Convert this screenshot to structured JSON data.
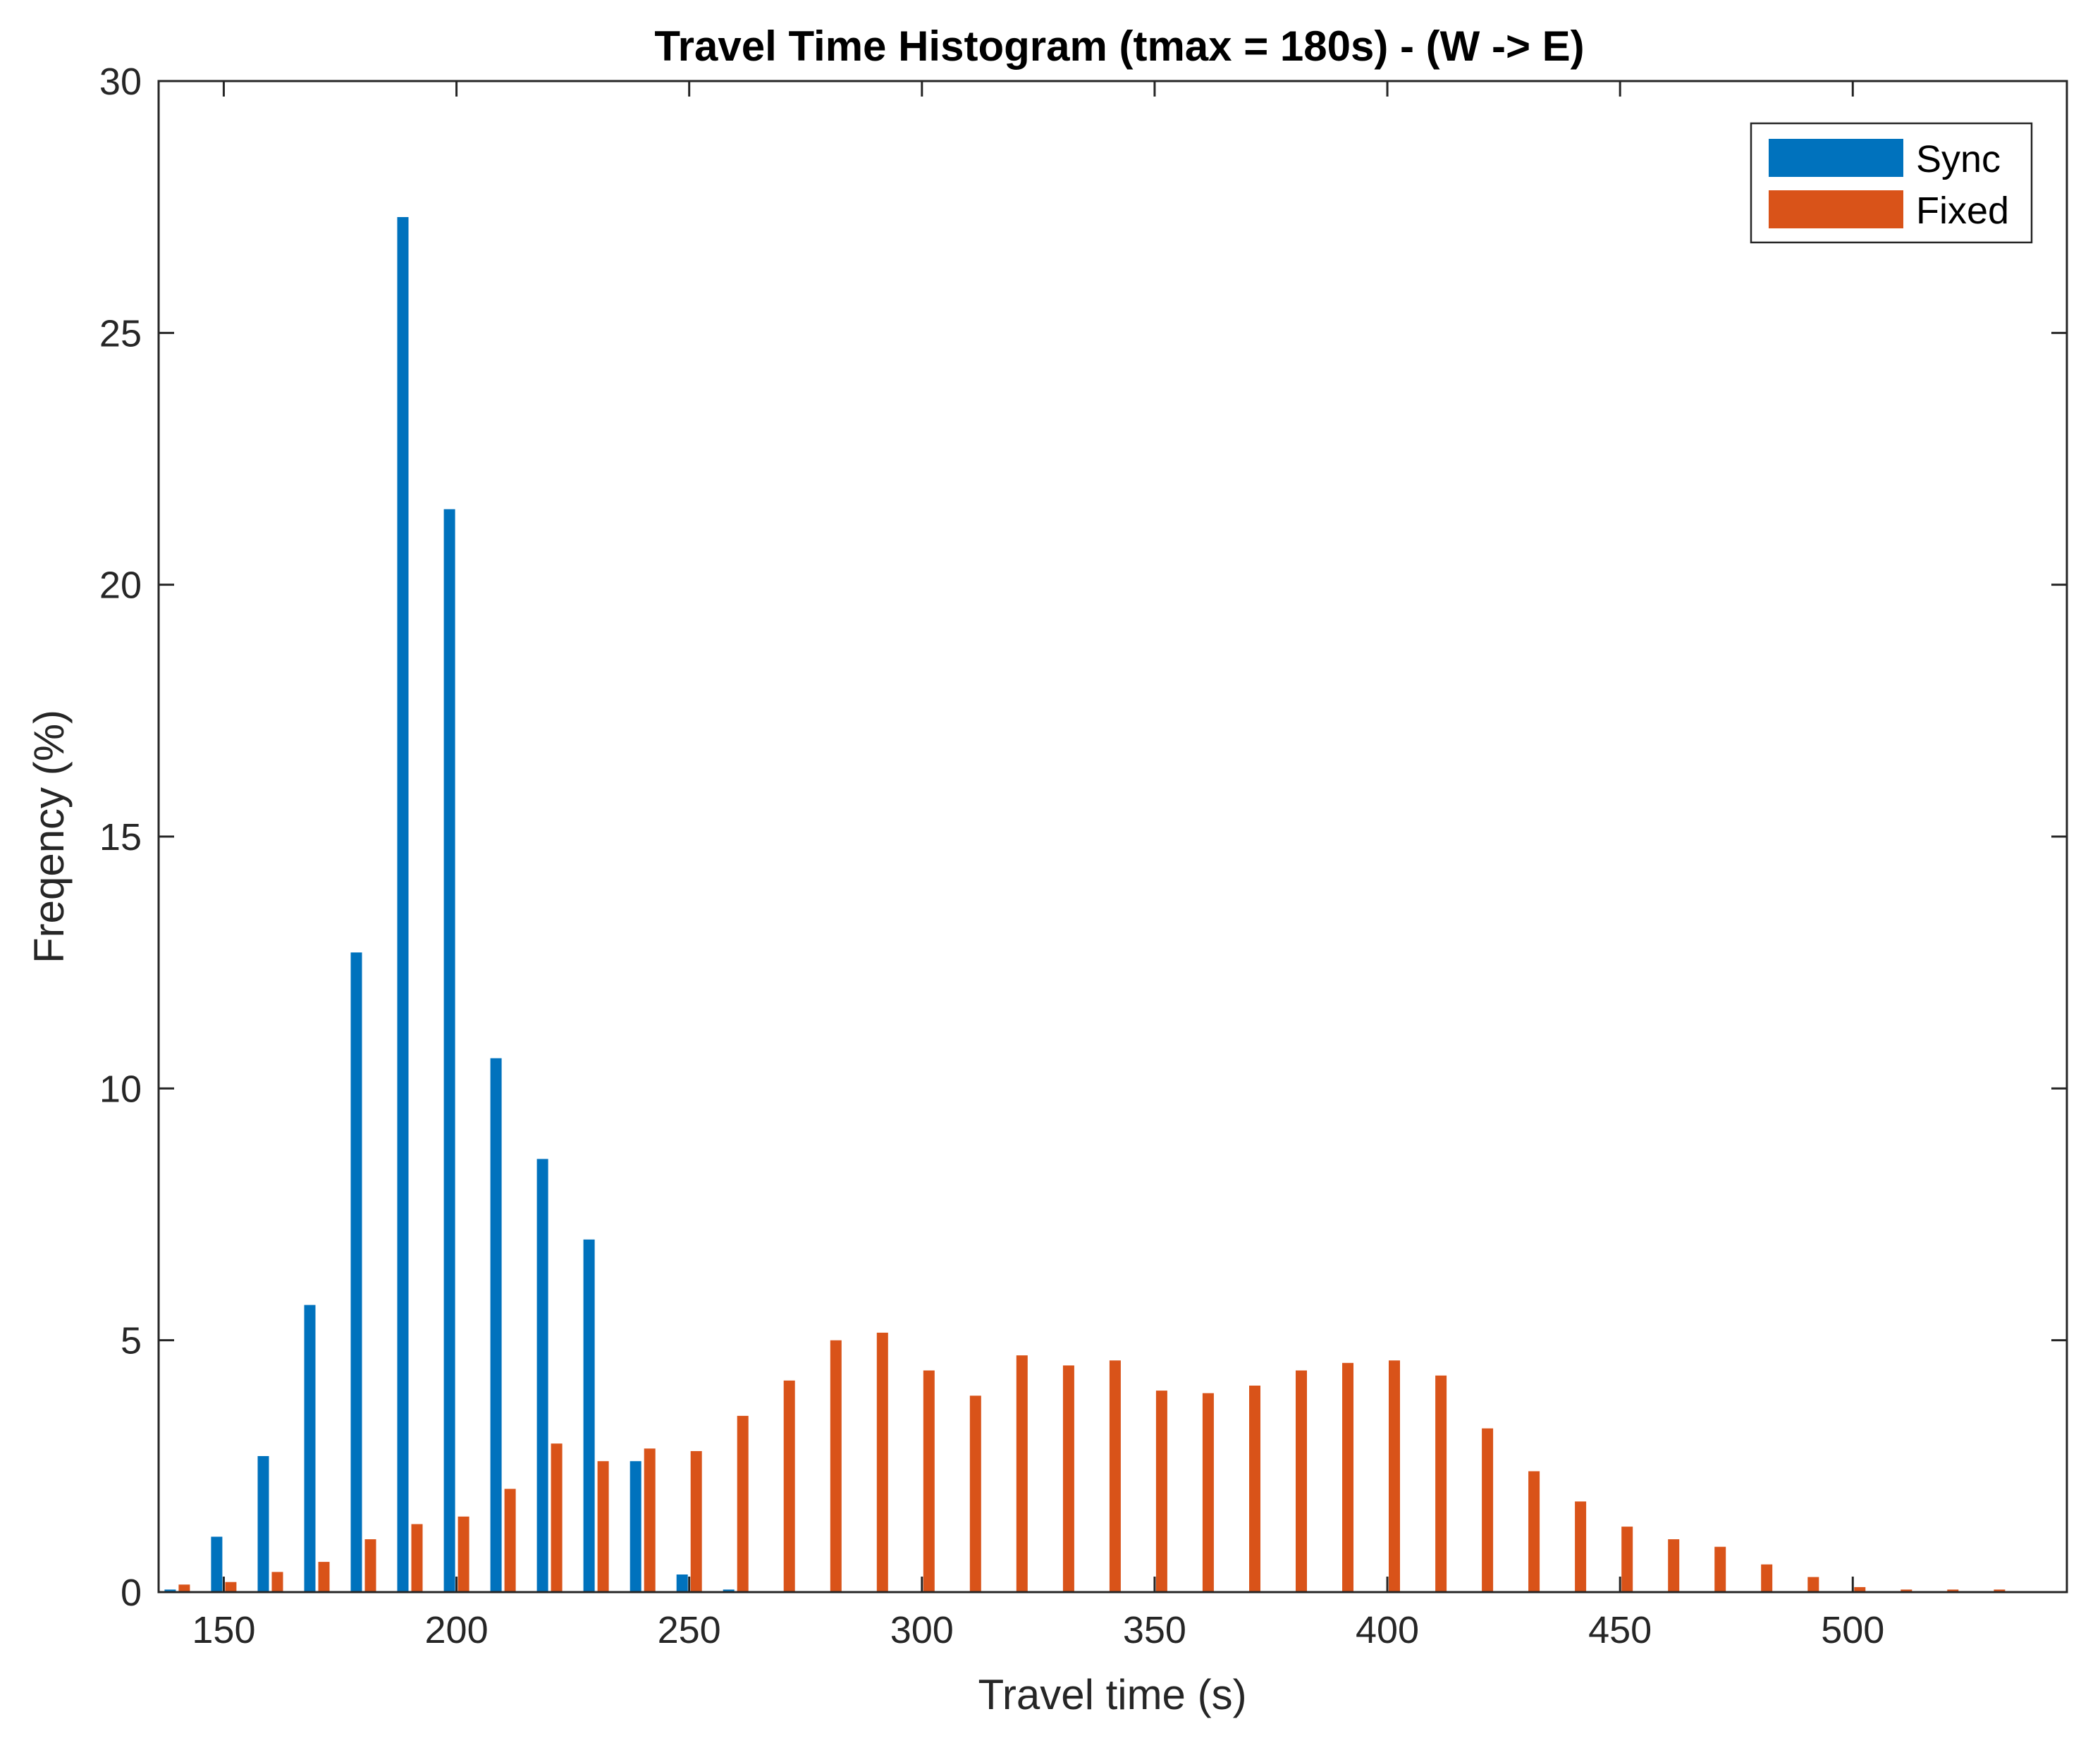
{
  "chart_data": {
    "type": "bar",
    "title": "Travel Time Histogram (tmax = 180s) - (W -> E)",
    "xlabel": "Travel time (s)",
    "ylabel": "Freqency (%)",
    "xlim": [
      136,
      546
    ],
    "ylim": [
      0,
      30
    ],
    "xticks": [
      150,
      200,
      250,
      300,
      350,
      400,
      450,
      500
    ],
    "yticks": [
      0,
      5,
      10,
      15,
      20,
      25,
      30
    ],
    "grid": false,
    "legend_position": "top-right",
    "series": [
      {
        "name": "Sync",
        "color": "#0072BD",
        "x": [
          140,
          150,
          160,
          170,
          180,
          190,
          200,
          210,
          220,
          230,
          240,
          250,
          260
        ],
        "values": [
          0.05,
          1.1,
          2.7,
          5.7,
          12.7,
          27.3,
          21.5,
          10.6,
          8.6,
          7.0,
          2.6,
          0.35,
          0.05
        ]
      },
      {
        "name": "Fixed",
        "color": "#D95319",
        "x": [
          140,
          150,
          160,
          170,
          180,
          190,
          200,
          210,
          220,
          230,
          240,
          250,
          260,
          270,
          280,
          290,
          300,
          310,
          320,
          330,
          340,
          350,
          360,
          370,
          380,
          390,
          400,
          410,
          420,
          430,
          440,
          450,
          460,
          470,
          480,
          490,
          500,
          510,
          520,
          530
        ],
        "values": [
          0.15,
          0.2,
          0.4,
          0.6,
          1.05,
          1.35,
          1.5,
          2.05,
          2.95,
          2.6,
          2.85,
          2.8,
          3.5,
          4.2,
          5.0,
          5.15,
          4.4,
          3.9,
          4.7,
          4.5,
          4.6,
          4.0,
          3.95,
          4.1,
          4.4,
          4.55,
          4.6,
          4.3,
          3.25,
          2.4,
          1.8,
          1.3,
          1.05,
          0.9,
          0.55,
          0.3,
          0.1,
          0.05,
          0.05,
          0.05
        ]
      }
    ]
  }
}
